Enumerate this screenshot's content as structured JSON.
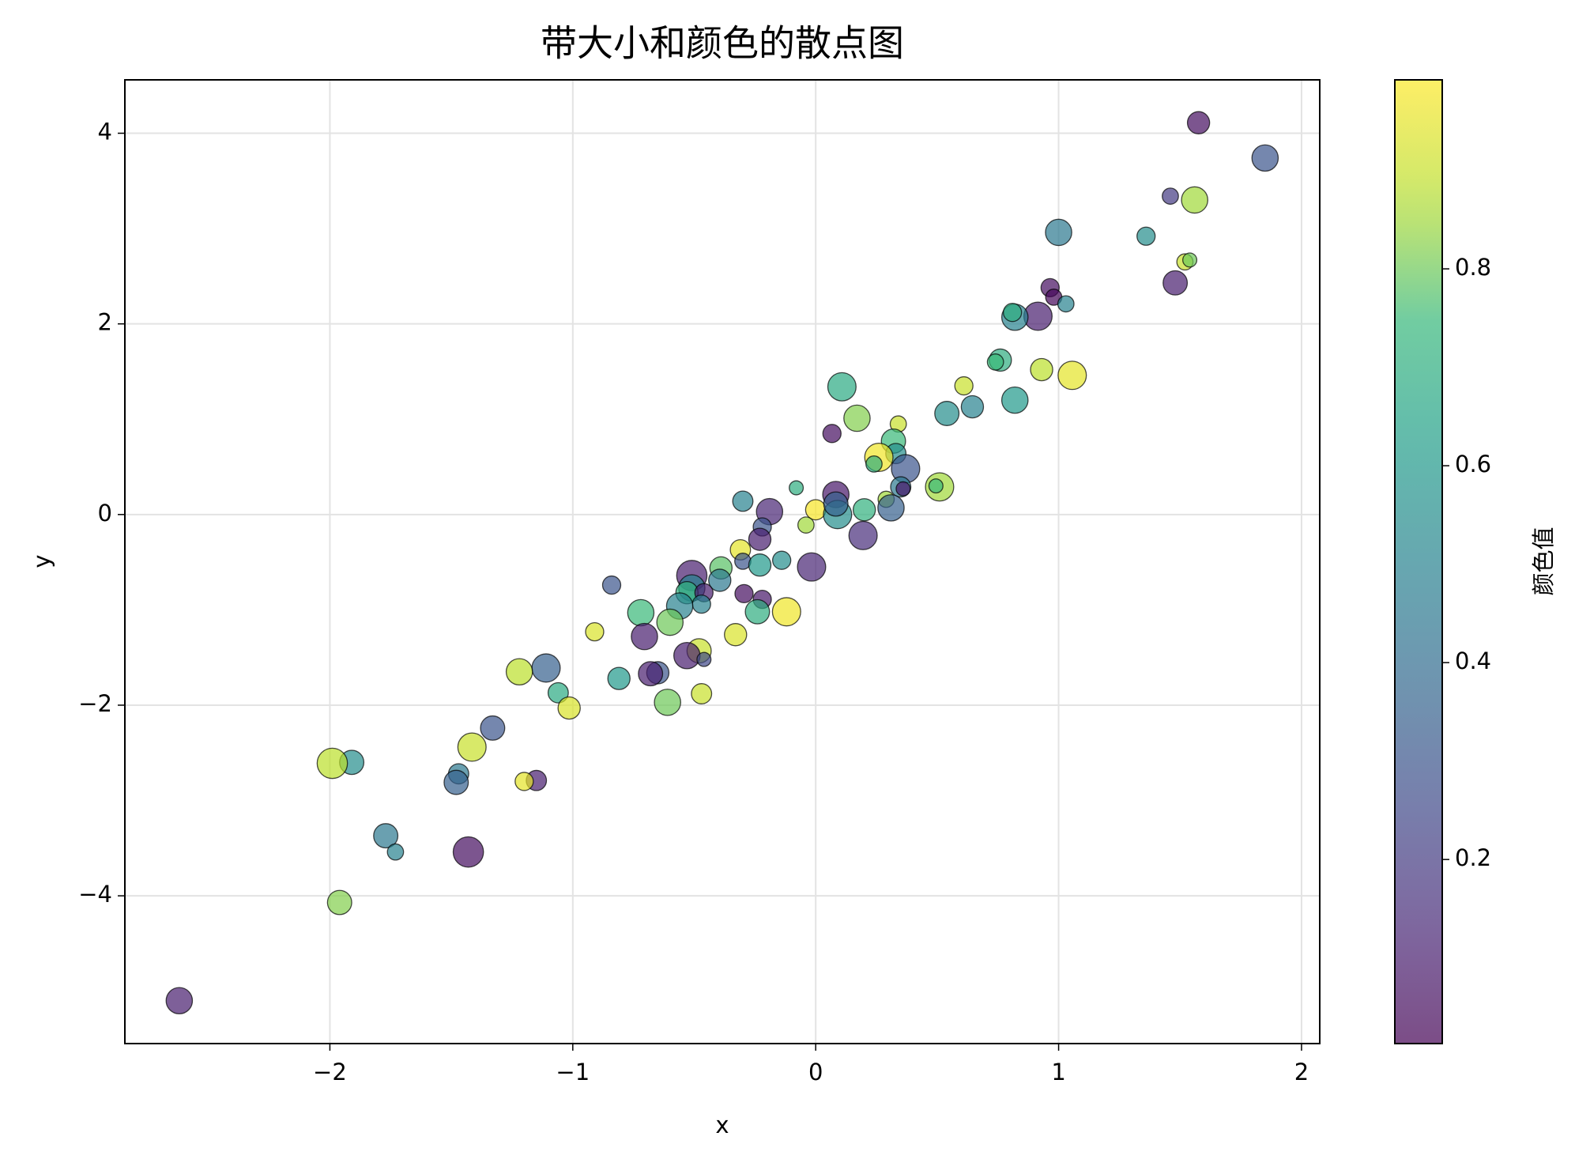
{
  "chart_data": {
    "type": "scatter",
    "title": "带大小和颜色的散点图",
    "xlabel": "x",
    "ylabel": "y",
    "colorbar_label": "颜色值",
    "x": [
      1.576,
      1.85,
      1.46,
      1.56,
      1.0,
      1.36,
      1.52,
      1.54,
      1.48,
      0.965,
      0.98,
      0.915,
      1.03,
      0.82,
      0.81,
      0.76,
      0.74,
      0.93,
      1.056,
      0.61,
      0.108,
      0.82,
      0.645,
      0.54,
      0.17,
      0.34,
      0.067,
      0.32,
      0.33,
      0.26,
      0.24,
      0.37,
      0.35,
      0.36,
      0.51,
      0.495,
      -0.08,
      0.29,
      0.083,
      -0.3,
      0.31,
      -0.19,
      0.0,
      0.2,
      0.09,
      0.083,
      -0.04,
      0.195,
      -0.22,
      -0.23,
      -0.31,
      -0.017,
      -0.3,
      -0.23,
      -0.14,
      -0.39,
      -0.395,
      -0.51,
      -0.84,
      -0.51,
      -0.53,
      -0.46,
      -0.295,
      -0.22,
      -0.47,
      -0.56,
      -0.24,
      -0.12,
      -0.72,
      -0.6,
      -0.91,
      -0.33,
      -0.705,
      -0.48,
      -0.53,
      -0.46,
      -1.11,
      -1.22,
      -0.65,
      -0.68,
      -0.81,
      -1.06,
      -0.47,
      -0.61,
      -1.015,
      -1.33,
      -1.415,
      -1.91,
      -1.99,
      -1.47,
      -1.48,
      -1.15,
      -1.2,
      -1.77,
      -1.73,
      -1.43,
      -1.96,
      -2.62
    ],
    "y": [
      4.11,
      3.74,
      3.34,
      3.3,
      2.96,
      2.92,
      2.65,
      2.67,
      2.43,
      2.38,
      2.28,
      2.08,
      2.21,
      2.07,
      2.12,
      1.62,
      1.6,
      1.52,
      1.46,
      1.35,
      1.34,
      1.2,
      1.13,
      1.06,
      1.01,
      0.95,
      0.85,
      0.77,
      0.64,
      0.6,
      0.53,
      0.48,
      0.29,
      0.27,
      0.29,
      0.3,
      0.28,
      0.16,
      0.21,
      0.14,
      0.07,
      0.03,
      0.05,
      0.05,
      0.0,
      0.11,
      -0.11,
      -0.22,
      -0.13,
      -0.26,
      -0.37,
      -0.55,
      -0.49,
      -0.53,
      -0.48,
      -0.56,
      -0.69,
      -0.64,
      -0.74,
      -0.77,
      -0.82,
      -0.82,
      -0.83,
      -0.89,
      -0.94,
      -0.96,
      -1.02,
      -1.02,
      -1.03,
      -1.13,
      -1.23,
      -1.26,
      -1.28,
      -1.43,
      -1.48,
      -1.52,
      -1.61,
      -1.65,
      -1.66,
      -1.67,
      -1.72,
      -1.87,
      -1.88,
      -1.97,
      -2.03,
      -2.24,
      -2.44,
      -2.6,
      -2.61,
      -2.72,
      -2.81,
      -2.79,
      -2.8,
      -3.37,
      -3.54,
      -3.54,
      -4.07,
      -5.1
    ],
    "sizes": [
      100,
      140,
      53,
      140,
      140,
      67,
      53,
      40,
      119,
      67,
      53,
      162,
      53,
      140,
      67,
      100,
      53,
      100,
      162,
      67,
      162,
      140,
      100,
      119,
      140,
      53,
      67,
      119,
      83,
      162,
      53,
      162,
      83,
      40,
      162,
      40,
      40,
      53,
      140,
      83,
      140,
      140,
      83,
      100,
      162,
      119,
      53,
      162,
      67,
      100,
      83,
      162,
      53,
      100,
      67,
      100,
      100,
      186,
      67,
      140,
      100,
      67,
      67,
      67,
      67,
      140,
      119,
      162,
      140,
      140,
      67,
      100,
      140,
      119,
      140,
      40,
      162,
      140,
      100,
      119,
      100,
      83,
      83,
      140,
      100,
      119,
      162,
      119,
      186,
      83,
      119,
      83,
      67,
      119,
      53,
      186,
      119,
      140
    ],
    "colors": [
      0.05,
      0.3,
      0.2,
      0.85,
      0.45,
      0.55,
      0.9,
      0.8,
      0.1,
      0.05,
      0.03,
      0.1,
      0.5,
      0.5,
      0.7,
      0.7,
      0.75,
      0.88,
      0.95,
      0.9,
      0.68,
      0.6,
      0.5,
      0.55,
      0.82,
      0.9,
      0.05,
      0.75,
      0.55,
      0.97,
      0.7,
      0.3,
      0.45,
      0.08,
      0.85,
      0.75,
      0.7,
      0.85,
      0.08,
      0.5,
      0.35,
      0.12,
      0.98,
      0.72,
      0.55,
      0.35,
      0.85,
      0.15,
      0.3,
      0.1,
      0.95,
      0.12,
      0.3,
      0.6,
      0.55,
      0.78,
      0.45,
      0.1,
      0.3,
      0.5,
      0.72,
      0.1,
      0.05,
      0.08,
      0.5,
      0.5,
      0.7,
      0.97,
      0.75,
      0.8,
      0.93,
      0.93,
      0.1,
      0.9,
      0.1,
      0.25,
      0.35,
      0.88,
      0.3,
      0.1,
      0.6,
      0.68,
      0.9,
      0.8,
      0.93,
      0.3,
      0.9,
      0.55,
      0.88,
      0.45,
      0.35,
      0.1,
      0.95,
      0.45,
      0.5,
      0.05,
      0.82,
      0.1
    ],
    "xlim": [
      -2.844,
      2.075
    ],
    "ylim": [
      -5.55,
      4.56
    ],
    "clim": [
      0.013,
      0.992
    ],
    "xticks": [
      {
        "value": -2,
        "label": "−2"
      },
      {
        "value": -1,
        "label": "−1"
      },
      0,
      1,
      2
    ],
    "yticks": [
      {
        "value": -4,
        "label": "−4"
      },
      {
        "value": -2,
        "label": "−2"
      },
      0,
      2,
      4
    ],
    "cticks": [
      0.2,
      0.4,
      0.6,
      0.8
    ],
    "grid": true,
    "colormap": "viridis",
    "alpha": 0.7,
    "edgecolor": "#000000"
  }
}
